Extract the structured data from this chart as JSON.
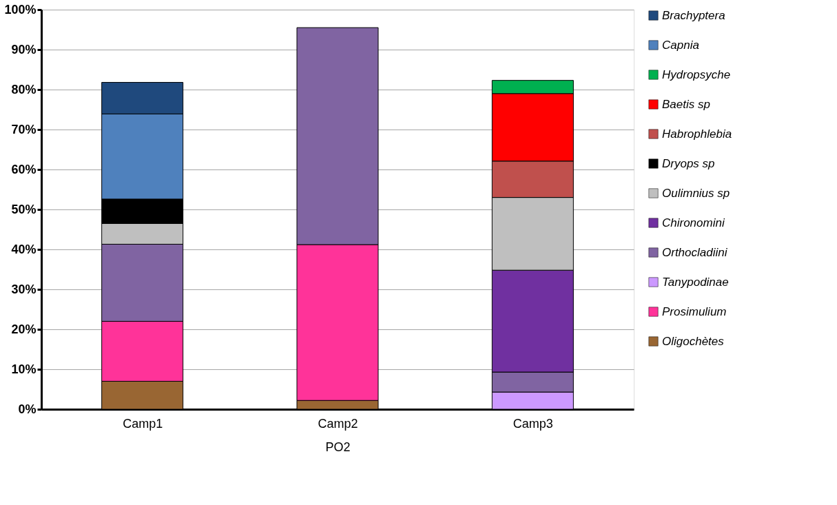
{
  "chart_data": {
    "type": "bar",
    "stacked": true,
    "xlabel": "PO2",
    "categories": [
      "Camp1",
      "Camp2",
      "Camp3"
    ],
    "series": [
      {
        "name": "Oligochètes",
        "color": "#996633",
        "values": [
          7.0,
          2.2,
          null
        ]
      },
      {
        "name": "Prosimulium",
        "color": "#ff3399",
        "values": [
          15.0,
          39.0,
          null
        ]
      },
      {
        "name": "Tanypodinae",
        "color": "#cc99ff",
        "values": [
          null,
          null,
          4.3
        ]
      },
      {
        "name": "Orthocladiini",
        "color": "#8064a2",
        "values": [
          19.3,
          54.3,
          5.0
        ]
      },
      {
        "name": "Chironomini",
        "color": "#7030a0",
        "values": [
          null,
          null,
          25.5
        ]
      },
      {
        "name": "Oulimnius sp",
        "color": "#bfbfbf",
        "values": [
          5.2,
          null,
          18.2
        ]
      },
      {
        "name": "Dryops sp",
        "color": "#000000",
        "values": [
          6.1,
          null,
          null
        ]
      },
      {
        "name": "Habrophlebia",
        "color": "#c0504d",
        "values": [
          null,
          null,
          9.1
        ]
      },
      {
        "name": "Baetis sp",
        "color": "#ff0000",
        "values": [
          null,
          null,
          16.9
        ]
      },
      {
        "name": "Hydropsyche",
        "color": "#00b050",
        "values": [
          null,
          null,
          3.3
        ]
      },
      {
        "name": "Capnia",
        "color": "#4f81bd",
        "values": [
          21.3,
          null,
          null
        ]
      },
      {
        "name": "Brachyptera",
        "color": "#1f497d",
        "values": [
          7.9,
          null,
          null
        ]
      }
    ],
    "ylim": [
      0,
      100
    ],
    "yticks": [
      {
        "value": 0,
        "label": "0%"
      },
      {
        "value": 10,
        "label": "10%"
      },
      {
        "value": 20,
        "label": "20%"
      },
      {
        "value": 30,
        "label": "30%"
      },
      {
        "value": 40,
        "label": "40%"
      },
      {
        "value": 50,
        "label": "50%"
      },
      {
        "value": 60,
        "label": "60%"
      },
      {
        "value": 70,
        "label": "70%"
      },
      {
        "value": 80,
        "label": "80%"
      },
      {
        "value": 90,
        "label": "90%"
      },
      {
        "value": 100,
        "label": "100%"
      }
    ],
    "grid": "y",
    "legend": "right"
  }
}
